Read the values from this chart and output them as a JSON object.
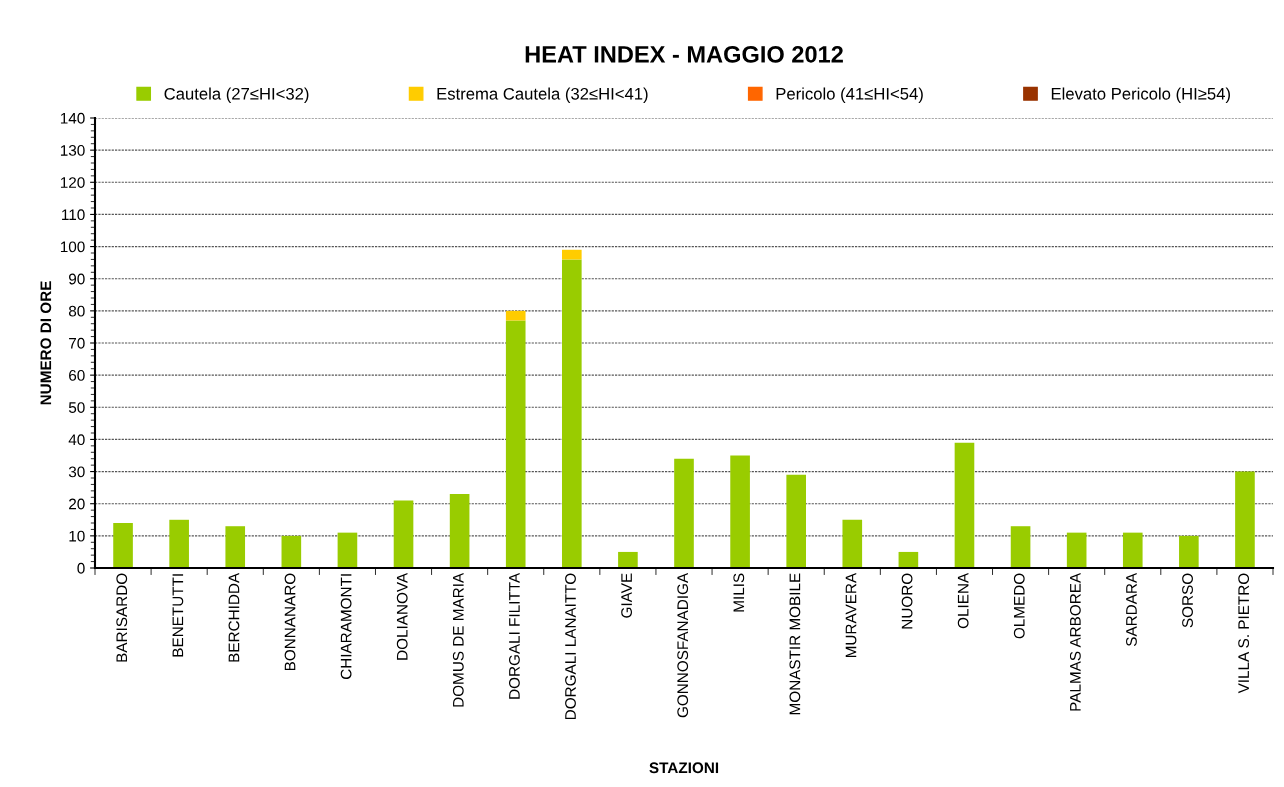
{
  "chart_data": {
    "type": "bar",
    "title": "HEAT INDEX - MAGGIO 2012",
    "xlabel": "STAZIONI",
    "ylabel": "NUMERO DI ORE",
    "categories": [
      "BARISARDO",
      "BENETUTTI",
      "BERCHIDDA",
      "BONNANARO",
      "CHIARAMONTI",
      "DOLIANOVA",
      "DOMUS DE MARIA",
      "DORGALI FILITTA",
      "DORGALI LANAITTO",
      "GIAVE",
      "GONNOSFANADIGA",
      "MILIS",
      "MONASTIR MOBILE",
      "MURAVERA",
      "NUORO",
      "OLIENA",
      "OLMEDO",
      "PALMAS ARBOREA",
      "SARDARA",
      "SORSO",
      "VILLA S. PIETRO"
    ],
    "stacked": true,
    "series": [
      {
        "name": "Cautela (27≤HI<32)",
        "color": "#99cc00",
        "values": [
          14,
          15,
          13,
          10,
          11,
          21,
          23,
          77,
          96,
          5,
          34,
          35,
          29,
          15,
          5,
          39,
          13,
          11,
          11,
          10,
          30
        ]
      },
      {
        "name": "Estrema Cautela (32≤HI<41)",
        "color": "#ffcc00",
        "values": [
          0,
          0,
          0,
          0,
          0,
          0,
          0,
          3,
          3,
          0,
          0,
          0,
          0,
          0,
          0,
          0,
          0,
          0,
          0,
          0,
          0
        ]
      },
      {
        "name": "Pericolo (41≤HI<54)",
        "color": "#ff6600",
        "values": [
          0,
          0,
          0,
          0,
          0,
          0,
          0,
          0,
          0,
          0,
          0,
          0,
          0,
          0,
          0,
          0,
          0,
          0,
          0,
          0,
          0
        ]
      },
      {
        "name": "Elevato Pericolo (HI≥54)",
        "color": "#993300",
        "values": [
          0,
          0,
          0,
          0,
          0,
          0,
          0,
          0,
          0,
          0,
          0,
          0,
          0,
          0,
          0,
          0,
          0,
          0,
          0,
          0,
          0
        ]
      }
    ],
    "ylim": [
      0,
      140
    ],
    "yticks": [
      0,
      10,
      20,
      30,
      40,
      50,
      60,
      70,
      80,
      90,
      100,
      110,
      120,
      130,
      140
    ],
    "grid": "y",
    "legend": "top"
  }
}
